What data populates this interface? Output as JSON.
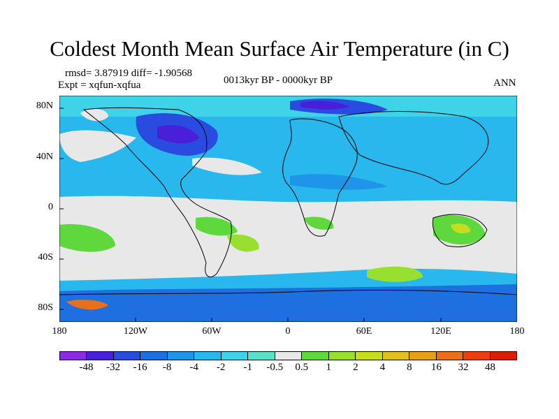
{
  "title": "Coldest Month Mean Surface Air Temperature (in C)",
  "stats": {
    "rmsd_diff": "rmsd= 3.87919  diff= -1.90568",
    "experiment": "Expt = xqfun-xqfua",
    "period": "0013kyr BP - 0000kyr BP",
    "season": "ANN"
  },
  "axes": {
    "x_ticks": [
      "180",
      "120W",
      "60W",
      "0",
      "60E",
      "120E",
      "180"
    ],
    "y_ticks": [
      "80N",
      "40N",
      "0",
      "40S",
      "80S"
    ]
  },
  "colorbar": {
    "labels": [
      "-48",
      "-32",
      "-16",
      "-8",
      "-4",
      "-2",
      "-1",
      "-0.5",
      "0.5",
      "1",
      "2",
      "4",
      "8",
      "16",
      "32",
      "48"
    ],
    "colors": [
      "#8a2be2",
      "#4a1fd8",
      "#2a4be0",
      "#1e6fe0",
      "#1e95e8",
      "#29b8ee",
      "#3fd3ea",
      "#5ae0c8",
      "#e8e8e8",
      "#5ed83c",
      "#98e030",
      "#c8dc1e",
      "#e0c020",
      "#e6a018",
      "#e87018",
      "#e84010",
      "#d82008"
    ]
  },
  "chart_data": {
    "type": "heatmap",
    "title": "Coldest Month Mean Surface Air Temperature (in C)",
    "subtitle": "0013kyr BP - 0000kyr BP",
    "x_range": [
      -180,
      180
    ],
    "y_range": [
      -90,
      90
    ],
    "rmsd": 3.87919,
    "diff": -1.90568,
    "bins": [
      -48,
      -32,
      -16,
      -8,
      -4,
      -2,
      -1,
      -0.5,
      0.5,
      1,
      2,
      4,
      8,
      16,
      32,
      48
    ]
  }
}
